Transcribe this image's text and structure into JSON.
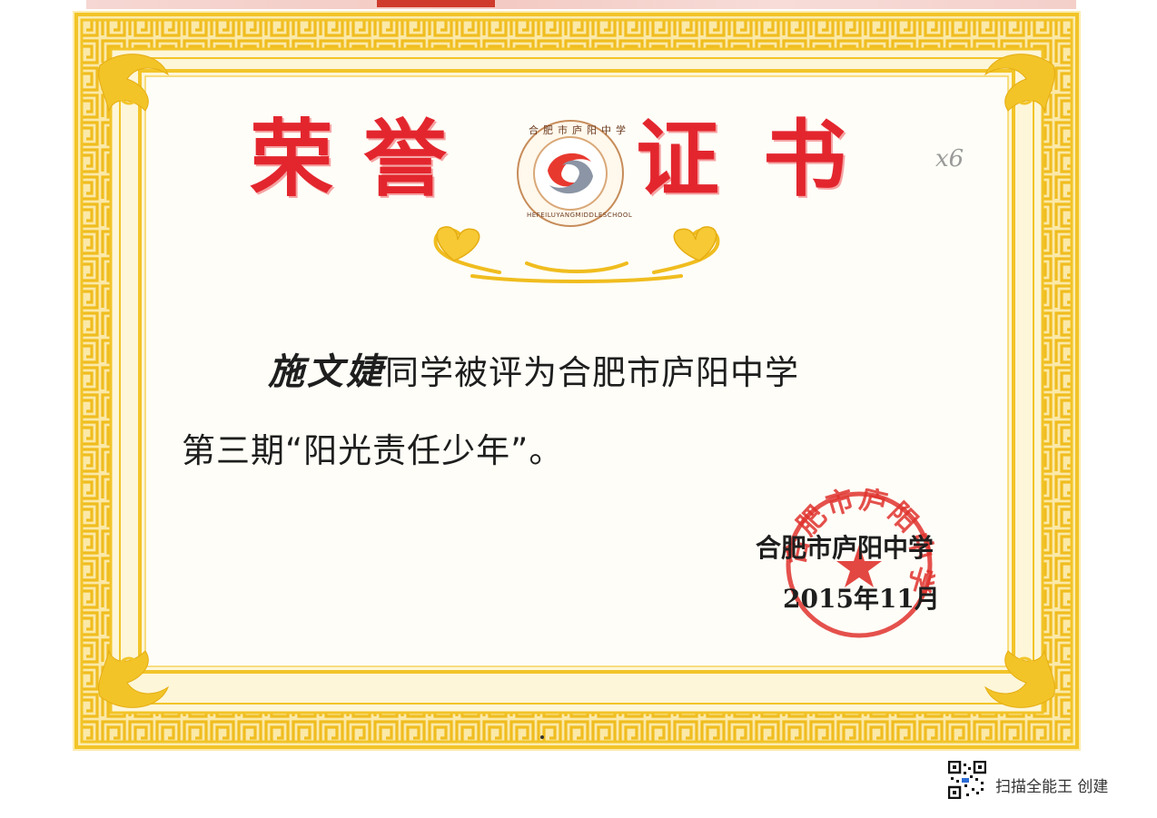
{
  "certificate": {
    "title_chars": [
      "荣",
      "誉",
      "证",
      "书"
    ],
    "logo": {
      "name_cn": "合肥市庐阳中学",
      "name_en": "HEFEILUYANGMIDDLESCHOOL"
    },
    "handwritten_note": "x6",
    "recipient_name": "施文婕",
    "line1_suffix": "同学被评为合肥市庐阳中学",
    "line2": "第三期“阳光责任少年”。",
    "issuer": "合肥市庐阳中学",
    "date": "2015年11月",
    "seal": {
      "text": "合肥市庐阳中学",
      "color": "#e0332e"
    },
    "colors": {
      "title_red": "#e3262e",
      "frame_gold": "#f2c428",
      "frame_light": "#fbe79a"
    }
  },
  "footer": {
    "watermark_text": "扫描全能王 创建"
  }
}
